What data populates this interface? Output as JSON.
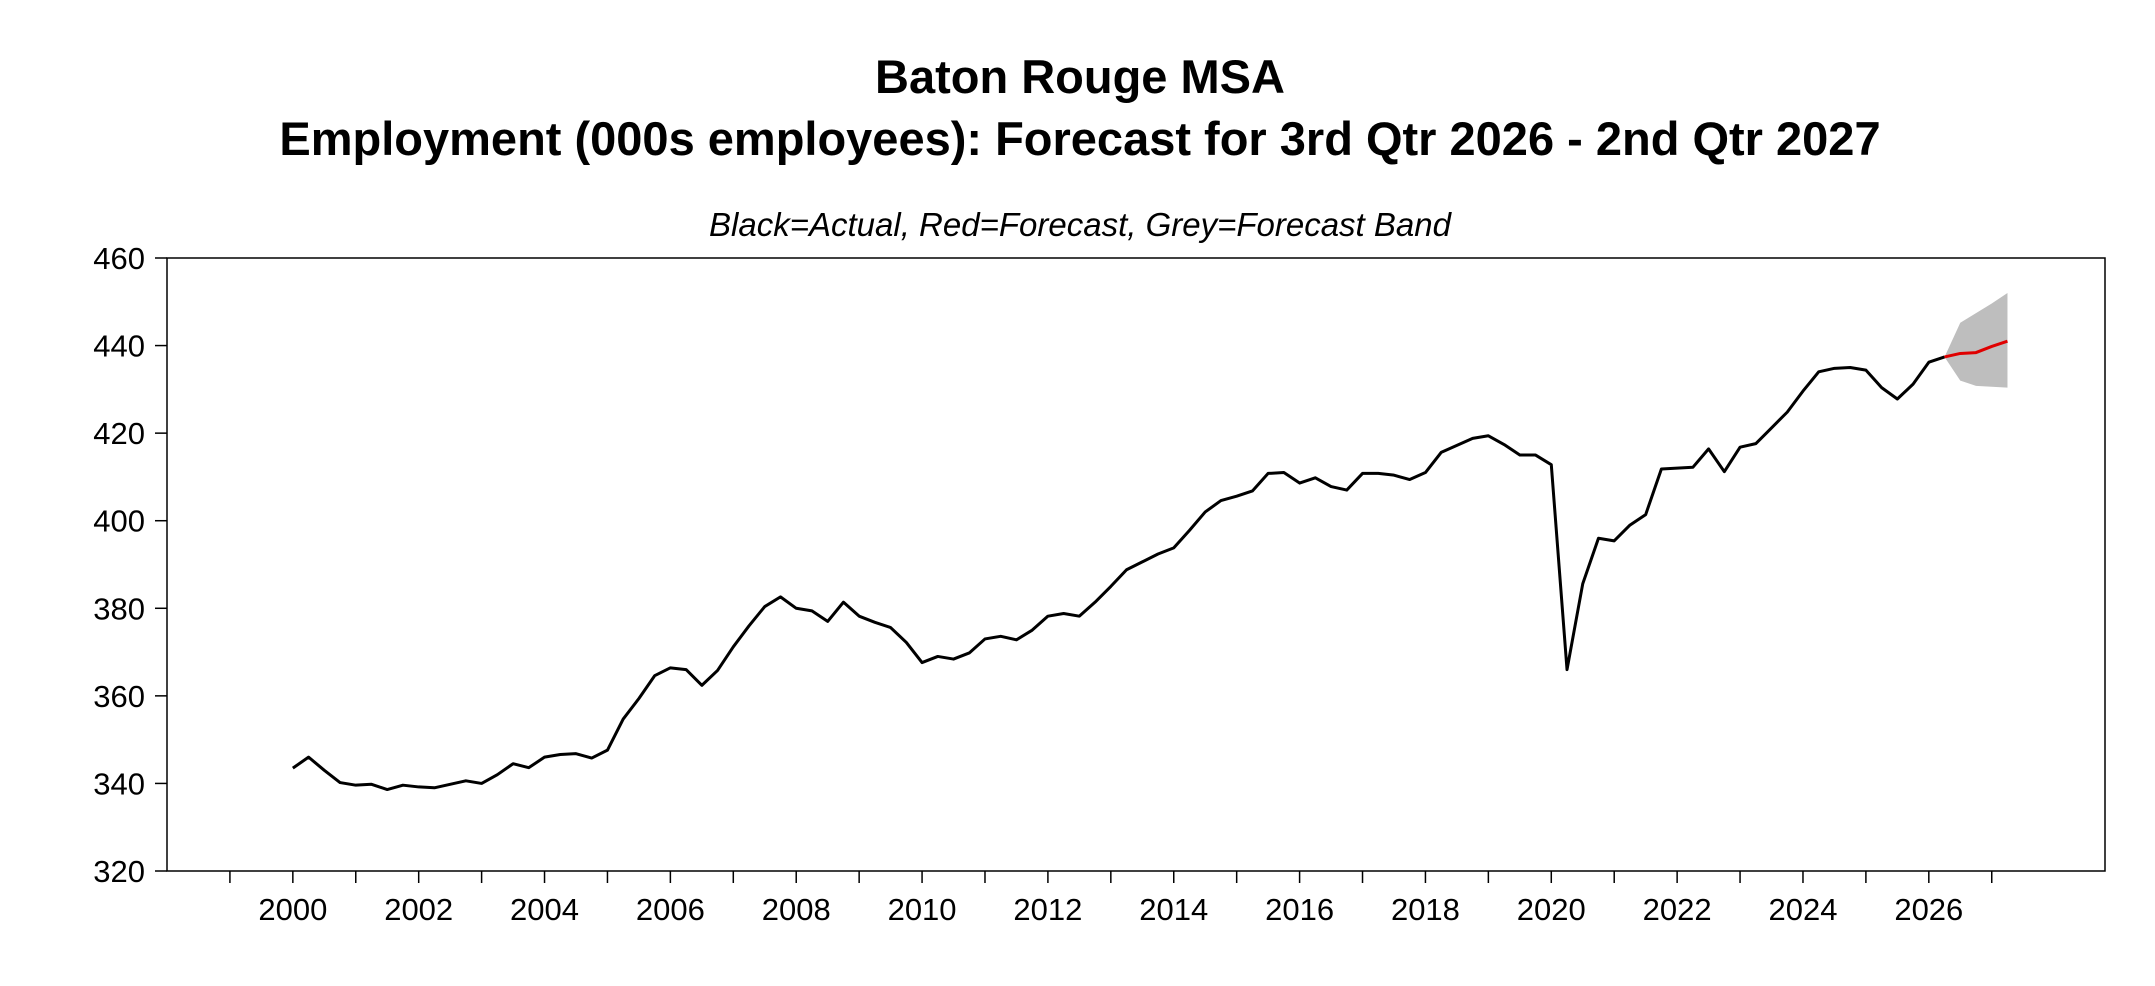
{
  "chart_data": {
    "type": "line",
    "title_line1": "Baton Rouge MSA",
    "title_line2": "Employment (000s employees): Forecast for 3rd Qtr 2026 - 2nd Qtr 2027",
    "subtitle": "Black=Actual, Red=Forecast, Grey=Forecast Band",
    "xlabel": "",
    "ylabel": "",
    "ylim": [
      320,
      460
    ],
    "xlim": [
      1998.0,
      2028.8
    ],
    "y_ticks": [
      "320",
      "340",
      "360",
      "380",
      "400",
      "420",
      "440",
      "460"
    ],
    "x_ticks": [
      "2000",
      "2002",
      "2004",
      "2006",
      "2008",
      "2010",
      "2012",
      "2014",
      "2016",
      "2018",
      "2020",
      "2022",
      "2024",
      "2026"
    ],
    "grid": false,
    "colors": {
      "actual": "#000000",
      "forecast": "#e00000",
      "band": "#bebebe"
    },
    "series": [
      {
        "role": "actual",
        "x": [
          2000.0,
          2000.25,
          2000.5,
          2000.75,
          2001.0,
          2001.25,
          2001.5,
          2001.75,
          2002.0,
          2002.25,
          2002.5,
          2002.75,
          2003.0,
          2003.25,
          2003.5,
          2003.75,
          2004.0,
          2004.25,
          2004.5,
          2004.75,
          2005.0,
          2005.25,
          2005.5,
          2005.75,
          2006.0,
          2006.25,
          2006.5,
          2006.75,
          2007.0,
          2007.25,
          2007.5,
          2007.75,
          2008.0,
          2008.25,
          2008.5,
          2008.75,
          2009.0,
          2009.25,
          2009.5,
          2009.75,
          2010.0,
          2010.25,
          2010.5,
          2010.75,
          2011.0,
          2011.25,
          2011.5,
          2011.75,
          2012.0,
          2012.25,
          2012.5,
          2012.75,
          2013.0,
          2013.25,
          2013.5,
          2013.75,
          2014.0,
          2014.25,
          2014.5,
          2014.75,
          2015.0,
          2015.25,
          2015.5,
          2015.75,
          2016.0,
          2016.25,
          2016.5,
          2016.75,
          2017.0,
          2017.25,
          2017.5,
          2017.75,
          2018.0,
          2018.25,
          2018.5,
          2018.75,
          2019.0,
          2019.25,
          2019.5,
          2019.75,
          2020.0,
          2020.25,
          2020.5,
          2020.75,
          2021.0,
          2021.25,
          2021.5,
          2021.75,
          2022.0,
          2022.25,
          2022.5,
          2022.75,
          2023.0,
          2023.25,
          2023.5,
          2023.75,
          2024.0,
          2024.25,
          2024.5,
          2024.75,
          2025.0,
          2025.25,
          2025.5,
          2025.75,
          2026.0,
          2026.25
        ],
        "values": [
          343.5,
          346.0,
          343.0,
          340.2,
          339.6,
          339.8,
          338.6,
          339.6,
          339.2,
          339.0,
          339.8,
          340.6,
          340.0,
          342.0,
          344.5,
          343.6,
          346.0,
          346.6,
          346.8,
          345.8,
          347.6,
          354.7,
          359.4,
          364.6,
          366.4,
          366.0,
          362.4,
          365.8,
          371.2,
          376.0,
          380.4,
          382.6,
          380.0,
          379.4,
          377.0,
          381.4,
          378.2,
          376.8,
          375.6,
          372.2,
          367.6,
          369.0,
          368.4,
          369.8,
          373.0,
          373.6,
          372.8,
          375.0,
          378.2,
          378.8,
          378.2,
          381.4,
          385.0,
          388.8,
          390.6,
          392.4,
          393.8,
          397.8,
          402.0,
          404.6,
          405.6,
          406.8,
          410.8,
          411.0,
          408.6,
          409.8,
          407.8,
          407.0,
          410.8,
          410.8,
          410.4,
          409.4,
          411.0,
          415.6,
          417.2,
          418.8,
          419.4,
          417.4,
          415.0,
          415.0,
          412.8,
          366.0,
          385.6,
          396.0,
          395.4,
          399.0,
          401.4,
          411.8,
          412.0,
          412.2,
          416.4,
          411.2,
          416.8,
          417.6,
          421.2,
          424.8,
          429.6,
          434.0,
          434.8,
          435.0,
          434.4,
          430.4,
          427.8,
          431.2,
          436.2,
          437.4
        ]
      },
      {
        "role": "forecast",
        "x": [
          2026.25,
          2026.5,
          2026.75,
          2027.0,
          2027.25
        ],
        "values": [
          437.4,
          438.2,
          438.4,
          439.8,
          441.0
        ]
      }
    ],
    "band": {
      "x": [
        2026.25,
        2026.5,
        2026.75,
        2027.0,
        2027.25
      ],
      "upper": [
        437.4,
        445.2,
        447.4,
        449.6,
        452.0
      ],
      "lower": [
        437.4,
        432.0,
        430.8,
        430.6,
        430.4
      ]
    }
  }
}
